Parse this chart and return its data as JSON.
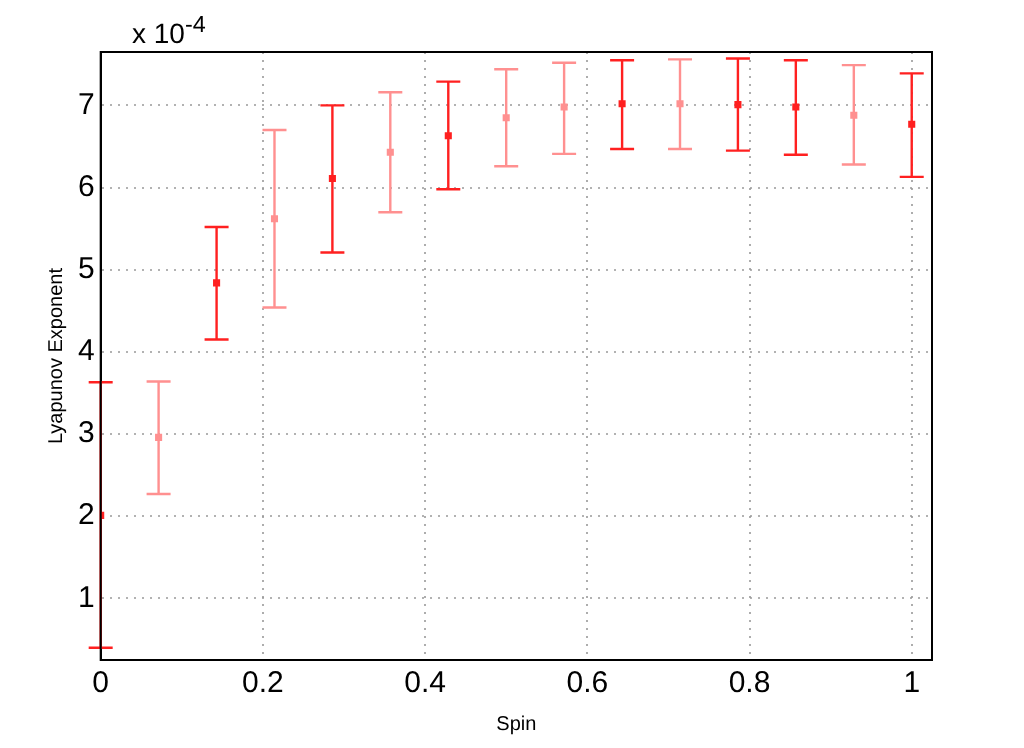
{
  "chart_data": {
    "type": "scatter",
    "xlabel": "Spin",
    "ylabel": "Lyapunov Exponent",
    "annotations": [
      "x 10$^{-4}$"
    ],
    "x": [
      0,
      0.0714,
      0.1429,
      0.2143,
      0.2857,
      0.3571,
      0.4286,
      0.5,
      0.5714,
      0.6429,
      0.7143,
      0.7857,
      0.8571,
      0.9286,
      1
    ],
    "series": [
      {
        "colors": [
          "#ff2020",
          "#ff9090",
          "#ff2020",
          "#ff9090",
          "#ff2020",
          "#ff9090",
          "#ff2020",
          "#ff9090",
          "#ff9090",
          "#ff2020",
          "#ff9090",
          "#ff2020",
          "#ff2020",
          "#ff9090",
          "#ff2020"
        ],
        "values": [
          2.01,
          2.96,
          4.84,
          5.62,
          6.11,
          6.43,
          6.63,
          6.85,
          6.98,
          7.02,
          7.02,
          7.01,
          6.98,
          6.88,
          6.77
        ],
        "errors": [
          [
            0.4,
            3.63
          ],
          [
            2.27,
            3.64
          ],
          [
            4.15,
            5.52
          ],
          [
            4.54,
            6.7
          ],
          [
            5.21,
            7.0
          ],
          [
            5.7,
            7.16
          ],
          [
            5.98,
            7.29
          ],
          [
            6.26,
            7.44
          ],
          [
            6.41,
            7.52
          ],
          [
            6.47,
            7.55
          ],
          [
            6.47,
            7.56
          ],
          [
            6.45,
            7.57
          ],
          [
            6.4,
            7.55
          ],
          [
            6.28,
            7.49
          ],
          [
            6.13,
            7.39
          ]
        ]
      }
    ],
    "xlim": [
      0,
      1.025
    ],
    "xticks": [
      0,
      0.2,
      0.4,
      0.6,
      0.8,
      1
    ],
    "ylim": [
      0.25,
      7.65
    ],
    "yticks": [
      1,
      2,
      3,
      4,
      5,
      6,
      7
    ],
    "grid": true,
    "marker": "square",
    "legend": false
  }
}
